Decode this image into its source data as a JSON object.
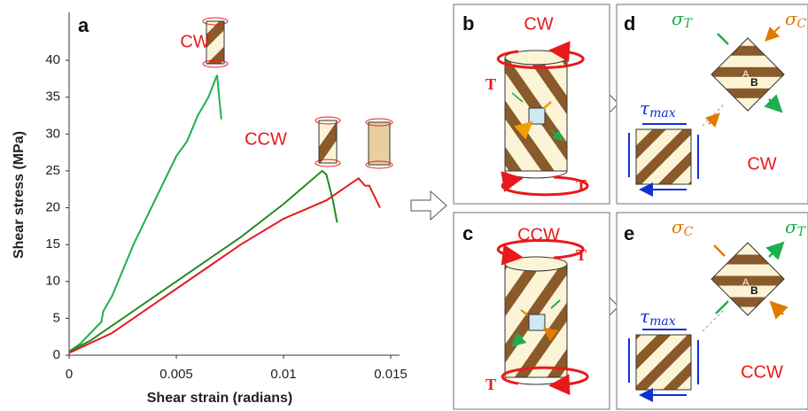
{
  "chart_data": {
    "type": "line",
    "x_label": "Shear strain (radians)",
    "y_label": "Shear stress (MPa)",
    "xlim": [
      0,
      0.015
    ],
    "xticks": [
      0,
      0.005,
      0.01,
      0.015
    ],
    "ylim": [
      0,
      46.5
    ],
    "yticks": [
      0,
      5,
      10,
      15,
      20,
      25,
      30,
      35,
      40
    ],
    "annotations": [
      "a",
      "CW",
      "CCW"
    ],
    "series": [
      {
        "color": "#1fae4e",
        "x": [
          0,
          0.0005,
          0.001,
          0.0015,
          0.0016,
          0.002,
          0.003,
          0.004,
          0.005,
          0.0055,
          0.006,
          0.0065,
          0.0069,
          0.007,
          0.0071
        ],
        "values": [
          0.5,
          1.5,
          3,
          4.5,
          6,
          8,
          15,
          21,
          27,
          29,
          32.5,
          35,
          38,
          35,
          32
        ]
      },
      {
        "color": "#228b22",
        "x": [
          0,
          0.001,
          0.002,
          0.004,
          0.006,
          0.008,
          0.01,
          0.011,
          0.0118,
          0.012,
          0.0123,
          0.0125
        ],
        "values": [
          0.5,
          2,
          4,
          8,
          12,
          16,
          20.5,
          23,
          25,
          24.5,
          21,
          18
        ]
      },
      {
        "color": "#e31a1c",
        "x": [
          0,
          0.002,
          0.004,
          0.006,
          0.008,
          0.01,
          0.012,
          0.013,
          0.0135,
          0.0138,
          0.014,
          0.0145
        ],
        "values": [
          0.3,
          3,
          7,
          11,
          15,
          18.5,
          21,
          23,
          24,
          23,
          23,
          20
        ]
      }
    ]
  },
  "panels": {
    "b": {
      "label": "b",
      "title": "CW",
      "torque_top": "T",
      "torque_bottom": "T"
    },
    "c": {
      "label": "c",
      "title": "CCW",
      "torque_top": "T",
      "torque_bottom": "T"
    },
    "d": {
      "label": "d",
      "sigma_left": {
        "symbol": "σ",
        "sub": "T"
      },
      "sigma_right": {
        "symbol": "σ",
        "sub": "C"
      },
      "point_a": "A",
      "point_b": "B",
      "tau": {
        "symbol": "τ",
        "sub": "max"
      },
      "direction": "CW"
    },
    "e": {
      "label": "e",
      "sigma_left": {
        "symbol": "σ",
        "sub": "C"
      },
      "sigma_right": {
        "symbol": "σ",
        "sub": "T"
      },
      "point_a": "A",
      "point_b": "B",
      "tau": {
        "symbol": "τ",
        "sub": "max"
      },
      "direction": "CCW"
    }
  }
}
